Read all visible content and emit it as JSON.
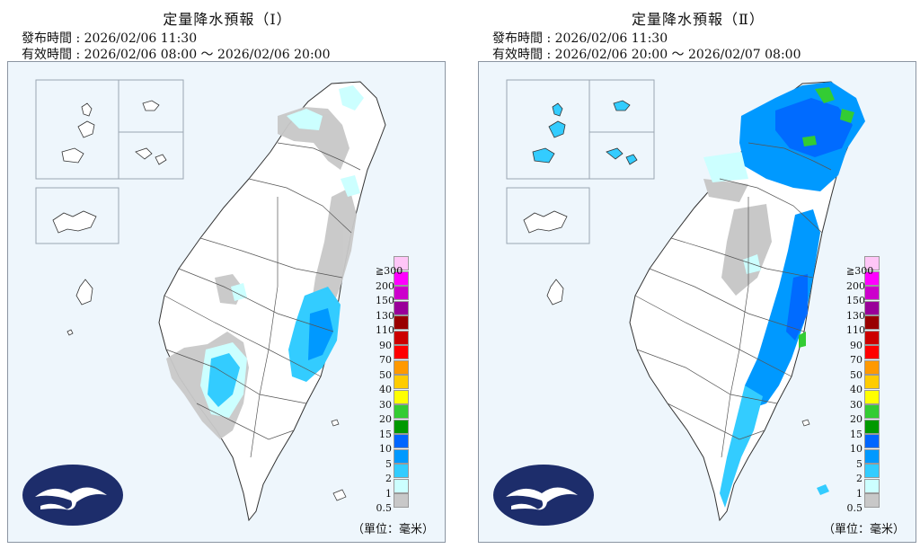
{
  "panels": [
    {
      "title": "定量降水預報（Ⅰ）",
      "issued": "發布時間 : 2026/02/06 11:30",
      "valid": "有效時間 : 2026/02/06 08:00 ～ 2026/02/06 20:00"
    },
    {
      "title": "定量降水預報（Ⅱ）",
      "issued": "發布時間 : 2026/02/06 11:30",
      "valid": "有效時間 : 2026/02/06 20:00 ～ 2026/02/07 08:00"
    }
  ],
  "legend": {
    "labels": [
      "≧300",
      "200",
      "150",
      "130",
      "110",
      "90",
      "70",
      "50",
      "40",
      "30",
      "20",
      "15",
      "10",
      "5",
      "2",
      "1",
      "0.5"
    ],
    "colors": [
      "#ffc6f7",
      "#ff00ff",
      "#cc00cc",
      "#990099",
      "#990000",
      "#cc0000",
      "#ff0000",
      "#ff9900",
      "#ffcc00",
      "#ffff00",
      "#33cc33",
      "#009900",
      "#0066ff",
      "#0099ff",
      "#33ccff",
      "#ccffff",
      "#c8c8c8"
    ]
  },
  "unit": "（單位：毫米）"
}
